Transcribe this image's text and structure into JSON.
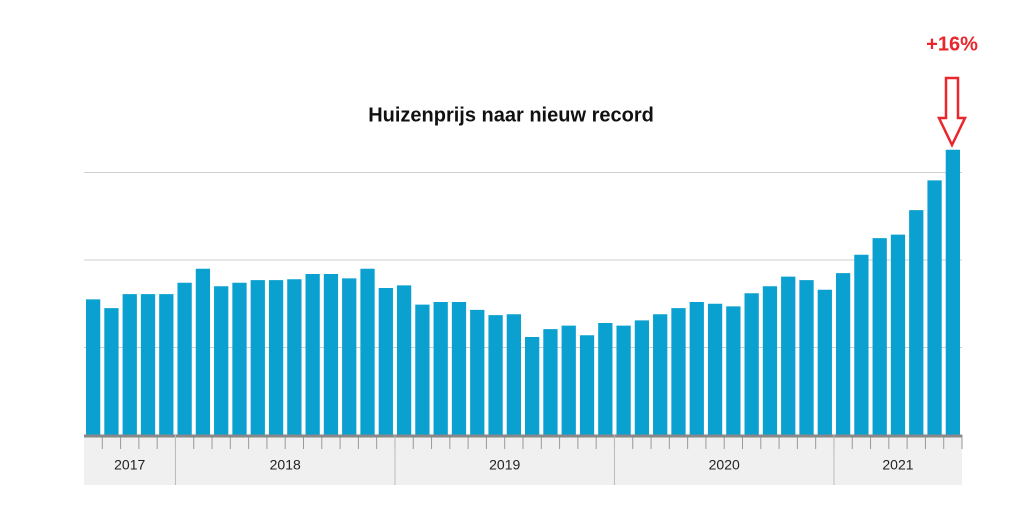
{
  "chart_data": {
    "type": "bar",
    "title": "Huizenprijs naar nieuw record",
    "annotation": "+16%",
    "categories": [
      "2017",
      null,
      null,
      null,
      null,
      "2018",
      null,
      null,
      null,
      null,
      null,
      null,
      null,
      null,
      null,
      null,
      null,
      "2019",
      null,
      null,
      null,
      null,
      null,
      null,
      null,
      null,
      null,
      null,
      null,
      "2020",
      null,
      null,
      null,
      null,
      null,
      null,
      null,
      null,
      null,
      null,
      null,
      "2021",
      null,
      null,
      null,
      null,
      null,
      null
    ],
    "values": [
      1.55,
      1.45,
      1.61,
      1.61,
      1.61,
      1.74,
      1.9,
      1.7,
      1.74,
      1.77,
      1.77,
      1.78,
      1.84,
      1.84,
      1.79,
      1.9,
      1.68,
      1.71,
      1.49,
      1.52,
      1.52,
      1.43,
      1.37,
      1.38,
      1.12,
      1.21,
      1.25,
      1.14,
      1.28,
      1.25,
      1.31,
      1.38,
      1.45,
      1.52,
      1.5,
      1.47,
      1.62,
      1.7,
      1.81,
      1.77,
      1.66,
      1.85,
      2.06,
      2.25,
      2.29,
      2.57,
      2.91,
      3.26
    ],
    "color": "#0aa0cf",
    "annotation_color": "#e8262b",
    "ylim": [
      0,
      3.3
    ],
    "yticks": [
      0,
      1,
      2,
      3
    ],
    "grid": true
  }
}
